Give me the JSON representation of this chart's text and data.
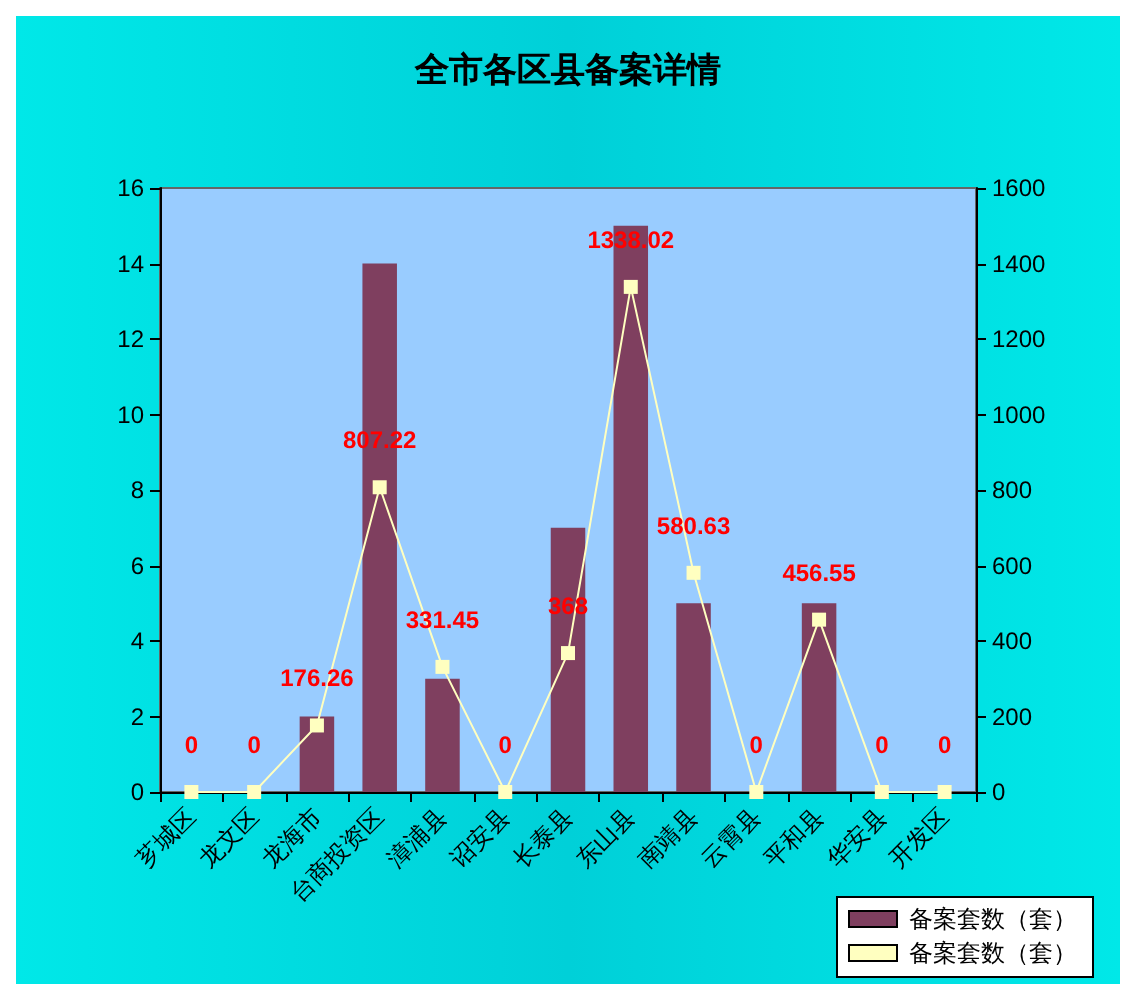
{
  "chart_data": {
    "type": "bar",
    "title": "全市各区县备案详情",
    "categories": [
      "芗城区",
      "龙文区",
      "龙海市",
      "台商投资区",
      "漳浦县",
      "诏安县",
      "长泰县",
      "东山县",
      "南靖县",
      "云霄县",
      "平和县",
      "华安县",
      "开发区"
    ],
    "series": [
      {
        "name": "备案套数（套）",
        "color": "#7f3f5f",
        "values": [
          0,
          0,
          2,
          14,
          3,
          0,
          7,
          15,
          5,
          0,
          5,
          0,
          0
        ]
      },
      {
        "name": "备案套数（套）",
        "type": "line",
        "axis": "y2",
        "color": "#ffffc0",
        "marker": "square",
        "values": [
          0,
          0,
          176.26,
          807.22,
          331.45,
          0,
          368,
          1338.02,
          580.63,
          0,
          456.55,
          0,
          0
        ],
        "value_labels": [
          "0",
          "0",
          "176.26",
          "807.22",
          "331.45",
          "0",
          "368",
          "1338.02",
          "580.63",
          "0",
          "456.55",
          "0",
          "0"
        ]
      }
    ],
    "ylim": [
      0,
      16
    ],
    "yticks": [
      0,
      2,
      4,
      6,
      8,
      10,
      12,
      14,
      16
    ],
    "y2lim": [
      0,
      1600
    ],
    "y2ticks": [
      0,
      200,
      400,
      600,
      800,
      1000,
      1200,
      1400,
      1600
    ],
    "grid": false,
    "legend": "bottom right"
  }
}
